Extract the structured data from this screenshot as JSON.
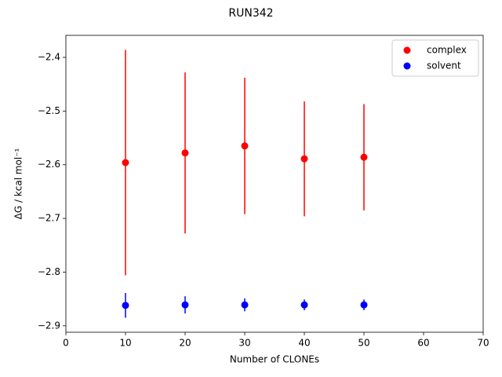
{
  "chart_data": {
    "type": "scatter",
    "title": "RUN342",
    "x_label": "Number of CLONEs",
    "y_label": "ΔG / kcal mol⁻¹",
    "x": [
      10,
      20,
      30,
      40,
      50
    ],
    "series": [
      {
        "name": "complex",
        "color": "#ff0000",
        "values": [
          -2.596,
          -2.578,
          -2.565,
          -2.589,
          -2.586
        ],
        "errors": [
          0.21,
          0.15,
          0.127,
          0.107,
          0.099
        ]
      },
      {
        "name": "solvent",
        "color": "#0000ff",
        "values": [
          -2.862,
          -2.861,
          -2.861,
          -2.861,
          -2.861
        ],
        "errors": [
          0.023,
          0.016,
          0.012,
          0.01,
          0.01
        ]
      }
    ],
    "xlim": [
      0,
      70
    ],
    "xticks": [
      0,
      10,
      20,
      30,
      40,
      50,
      60,
      70
    ],
    "ylim": [
      -2.912,
      -2.359
    ],
    "yticks": [
      {
        "value": -2.9,
        "label": "−2.9"
      },
      {
        "value": -2.8,
        "label": "−2.8"
      },
      {
        "value": -2.7,
        "label": "−2.7"
      },
      {
        "value": -2.6,
        "label": "−2.6"
      },
      {
        "value": -2.5,
        "label": "−2.5"
      },
      {
        "value": -2.4,
        "label": "−2.4"
      }
    ],
    "legend": "upper right",
    "grid": false
  }
}
